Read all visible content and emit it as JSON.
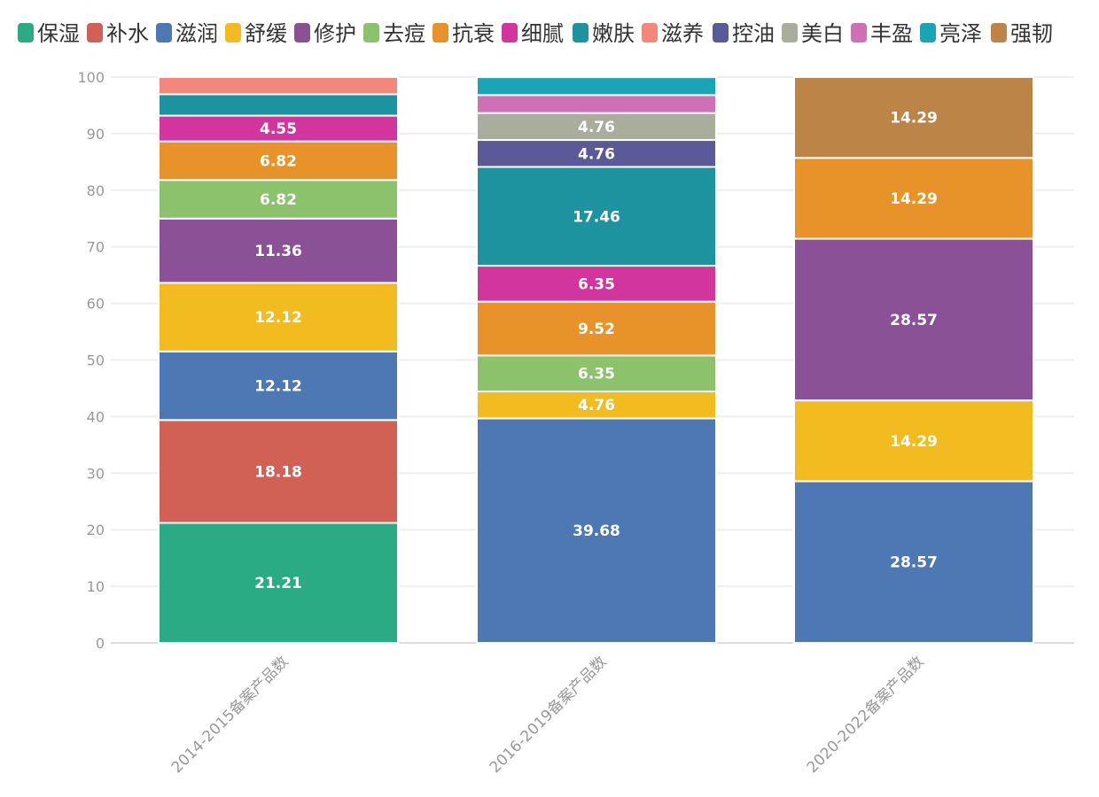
{
  "chart_data": {
    "type": "bar",
    "stacked": true,
    "categories": [
      "2014-2015备案产品数",
      "2016-2019备案产品数",
      "2020-2022备案产品数"
    ],
    "ylim": [
      0,
      100
    ],
    "yticks": [
      0,
      10,
      20,
      30,
      40,
      50,
      60,
      70,
      80,
      90,
      100
    ],
    "grid": true,
    "legend_position": "top",
    "series": [
      {
        "name": "保湿",
        "color": "#2aab84",
        "values": [
          21.21,
          0,
          0
        ]
      },
      {
        "name": "补水",
        "color": "#d06154",
        "values": [
          18.18,
          0,
          0
        ]
      },
      {
        "name": "滋润",
        "color": "#4e78b3",
        "values": [
          12.12,
          39.68,
          28.57
        ]
      },
      {
        "name": "舒缓",
        "color": "#f2bc21",
        "values": [
          12.12,
          4.76,
          14.29
        ]
      },
      {
        "name": "修护",
        "color": "#8b5196",
        "values": [
          11.36,
          0,
          28.57
        ]
      },
      {
        "name": "去痘",
        "color": "#8cc26b",
        "values": [
          6.82,
          6.35,
          0
        ]
      },
      {
        "name": "抗衰",
        "color": "#e8922a",
        "values": [
          6.82,
          9.52,
          14.29
        ]
      },
      {
        "name": "细腻",
        "color": "#d2359d",
        "values": [
          4.55,
          6.35,
          0
        ]
      },
      {
        "name": "嫩肤",
        "color": "#1c939e",
        "values": [
          3.79,
          17.46,
          0
        ]
      },
      {
        "name": "滋养",
        "color": "#f4877c",
        "values": [
          3.03,
          0,
          0
        ]
      },
      {
        "name": "控油",
        "color": "#5a5a99",
        "values": [
          0,
          4.76,
          0
        ]
      },
      {
        "name": "美白",
        "color": "#a8ad9c",
        "values": [
          0,
          4.76,
          0
        ]
      },
      {
        "name": "丰盈",
        "color": "#cf6fb5",
        "values": [
          0,
          3.17,
          0
        ]
      },
      {
        "name": "亮泽",
        "color": "#19a5b3",
        "values": [
          0,
          3.17,
          0
        ]
      },
      {
        "name": "强韧",
        "color": "#bd8448",
        "values": [
          0,
          0,
          14.29
        ]
      }
    ],
    "data_labels": [
      {
        "category": 0,
        "series": 0,
        "text": "21.21"
      },
      {
        "category": 0,
        "series": 1,
        "text": "18.18"
      },
      {
        "category": 0,
        "series": 2,
        "text": "12.12"
      },
      {
        "category": 0,
        "series": 3,
        "text": "12.12"
      },
      {
        "category": 0,
        "series": 4,
        "text": "11.36"
      },
      {
        "category": 0,
        "series": 5,
        "text": "6.82"
      },
      {
        "category": 0,
        "series": 6,
        "text": "6.82"
      },
      {
        "category": 0,
        "series": 7,
        "text": "4.55"
      },
      {
        "category": 1,
        "series": 2,
        "text": "39.68"
      },
      {
        "category": 1,
        "series": 3,
        "text": "4.76"
      },
      {
        "category": 1,
        "series": 5,
        "text": "6.35"
      },
      {
        "category": 1,
        "series": 6,
        "text": "9.52"
      },
      {
        "category": 1,
        "series": 7,
        "text": "6.35"
      },
      {
        "category": 1,
        "series": 8,
        "text": "17.46"
      },
      {
        "category": 1,
        "series": 10,
        "text": "4.76"
      },
      {
        "category": 1,
        "series": 11,
        "text": "4.76"
      },
      {
        "category": 2,
        "series": 2,
        "text": "28.57"
      },
      {
        "category": 2,
        "series": 3,
        "text": "14.29"
      },
      {
        "category": 2,
        "series": 4,
        "text": "28.57"
      },
      {
        "category": 2,
        "series": 6,
        "text": "14.29"
      },
      {
        "category": 2,
        "series": 14,
        "text": "14.29"
      }
    ]
  }
}
